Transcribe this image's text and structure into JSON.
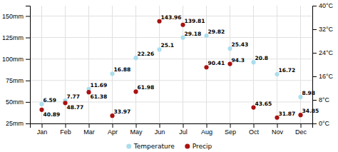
{
  "chart_data": {
    "type": "scatter",
    "categories": [
      "Jan",
      "Feb",
      "Mar",
      "Apr",
      "May",
      "Jun",
      "Jul",
      "Aug",
      "Sep",
      "Oct",
      "Nov",
      "Dec"
    ],
    "series": [
      {
        "name": "Temperature",
        "color": "#aaddee",
        "axis": "y2",
        "marker": "circle",
        "values": [
          6.59,
          7.77,
          11.69,
          16.88,
          22.26,
          25.1,
          29.18,
          29.82,
          25.43,
          20.8,
          16.72,
          8.98
        ]
      },
      {
        "name": "Precip",
        "color": "#aa1111",
        "marker": "circle",
        "values": [
          40.89,
          48.77,
          61.38,
          33.97,
          61.98,
          143.96,
          139.81,
          90.41,
          94.3,
          43.65,
          31.87,
          34.85
        ]
      }
    ],
    "ylim": [
      25,
      162
    ],
    "yticks": [
      {
        "value": 25,
        "label": "25mm"
      },
      {
        "value": 50,
        "label": "50mm"
      },
      {
        "value": 75,
        "label": "75mm"
      },
      {
        "value": 100,
        "label": "100mm"
      },
      {
        "value": 125,
        "label": "125mm"
      },
      {
        "value": 150,
        "label": "150mm"
      }
    ],
    "y2lim": [
      0,
      40
    ],
    "y2ticks": [
      {
        "value": 0,
        "label": "0°C"
      },
      {
        "value": 8,
        "label": "8°C"
      },
      {
        "value": 16,
        "label": "16°C"
      },
      {
        "value": 24,
        "label": "24°C"
      },
      {
        "value": 32,
        "label": "32°C"
      },
      {
        "value": 40,
        "label": "40°C"
      }
    ],
    "grid": true,
    "legend": "bottom",
    "data_labels": true
  }
}
